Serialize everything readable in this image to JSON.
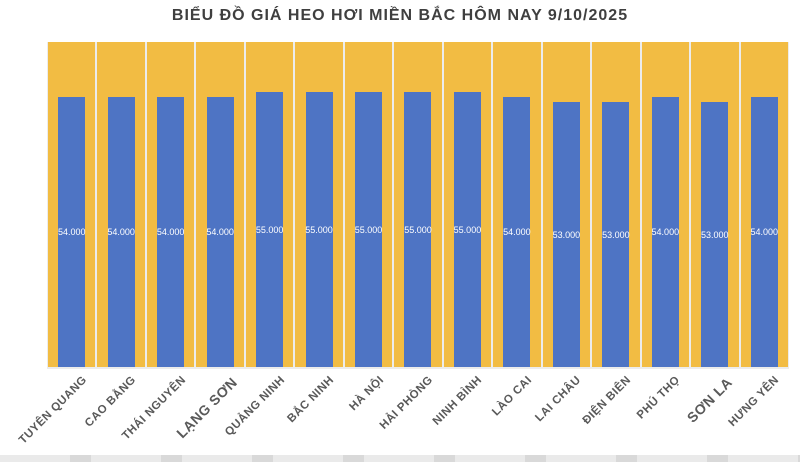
{
  "chart_data": {
    "type": "bar",
    "title": "BIỂU ĐỒ GIÁ HEO HƠI MIỀN BẮC HÔM NAY 9/10/2025",
    "categories": [
      "TUYÊN QUANG",
      "CAO BẰNG",
      "THÁI NGUYÊN",
      "LẠNG SƠN",
      "QUẢNG NINH",
      "BẮC NINH",
      "HÀ NỘI",
      "HẢI PHÒNG",
      "NINH BÌNH",
      "LÀO CAI",
      "LAI CHÂU",
      "ĐIỆN BIÊN",
      "PHÚ THỌ",
      "SƠN LA",
      "HƯNG YÊN"
    ],
    "values": [
      54000,
      54000,
      54000,
      54000,
      55000,
      55000,
      55000,
      55000,
      55000,
      54000,
      53000,
      53000,
      54000,
      53000,
      54000
    ],
    "value_labels": [
      "54.000",
      "54.000",
      "54.000",
      "54.000",
      "55.000",
      "55.000",
      "55.000",
      "55.000",
      "55.000",
      "54.000",
      "53.000",
      "53.000",
      "54.000",
      "53.000",
      "54.000"
    ],
    "emphasized_categories": [
      "LẠNG SƠN",
      "SƠN LA"
    ],
    "xlabel": "",
    "ylabel": "",
    "ylim": [
      0,
      65000
    ],
    "grid": "off",
    "legend": "none",
    "colors": {
      "bar": "#4e74c4",
      "column_background": "#f2bc43",
      "separator": "#ececec",
      "value_text": "#ffffff",
      "category_label": "#595959",
      "title_text": "#3f3f3f"
    }
  }
}
